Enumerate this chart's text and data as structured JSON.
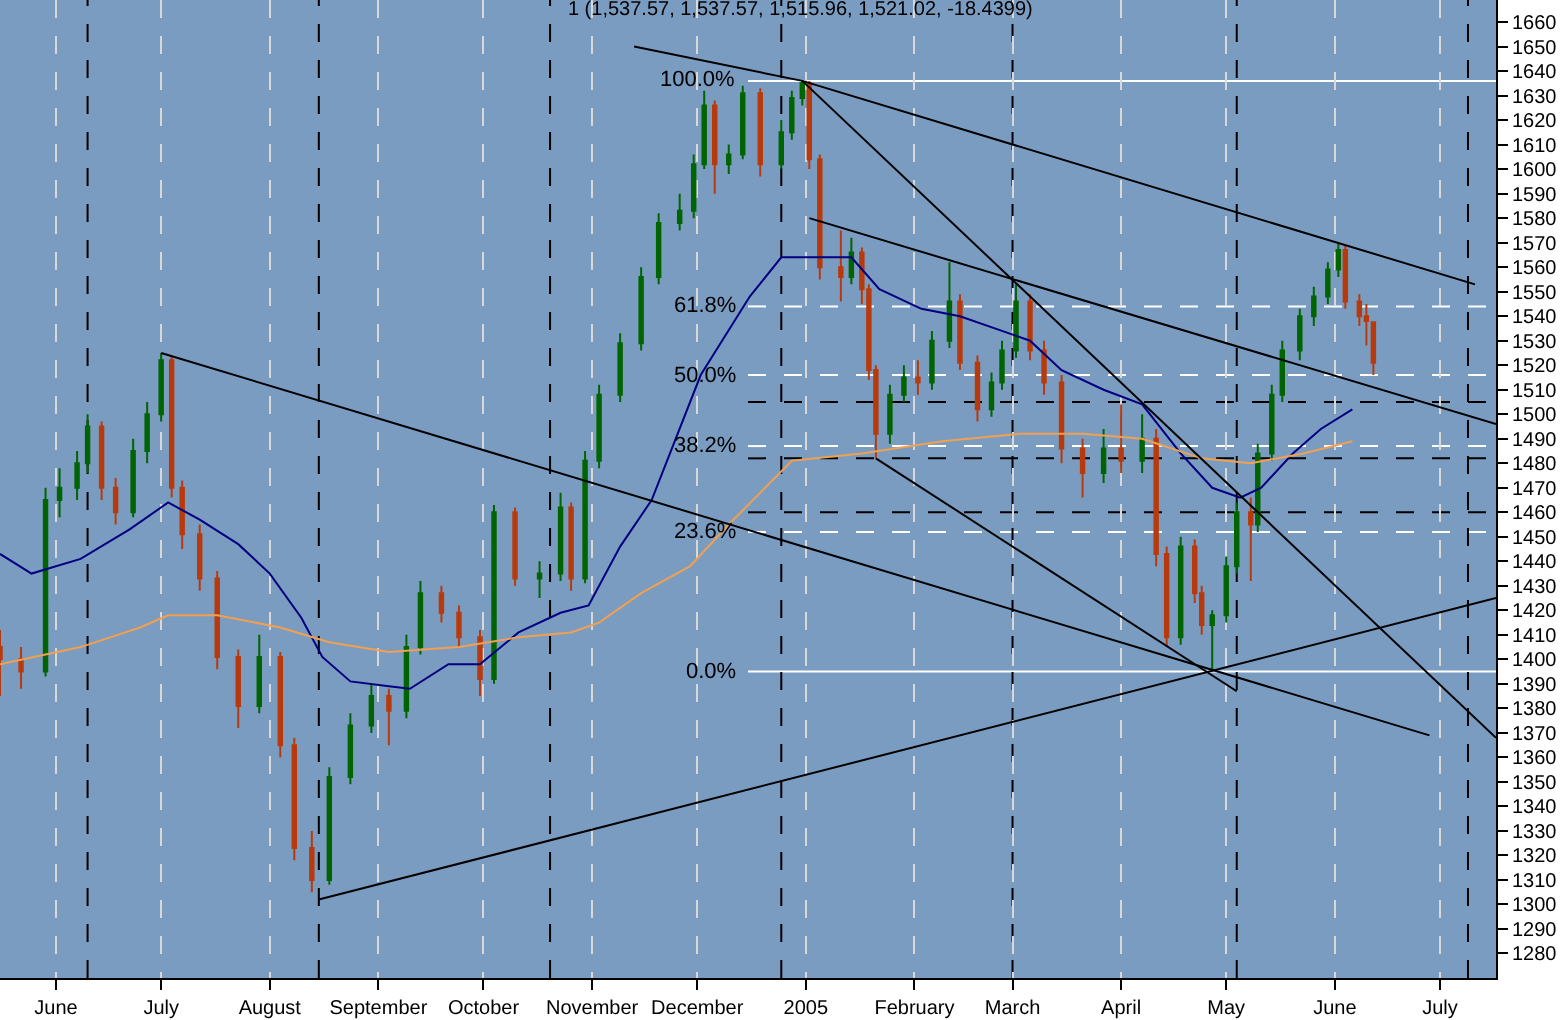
{
  "chart_data": {
    "type": "candlestick",
    "title": "1 (1,537.57, 1,537.57, 1,515.96, 1,521.02, -18.4399)",
    "x": [
      "2004-05-16",
      "2004-05-22",
      "2004-05-29",
      "2004-06-02",
      "2004-06-07",
      "2004-06-10",
      "2004-06-14",
      "2004-06-18",
      "2004-06-23",
      "2004-06-27",
      "2004-07-01",
      "2004-07-04",
      "2004-07-07",
      "2004-07-12",
      "2004-07-17",
      "2004-07-23",
      "2004-07-29",
      "2004-08-04",
      "2004-08-08",
      "2004-08-13",
      "2004-08-18",
      "2004-08-24",
      "2004-08-30",
      "2004-09-04",
      "2004-09-09",
      "2004-09-13",
      "2004-09-19",
      "2004-09-24",
      "2004-09-30",
      "2004-10-04",
      "2004-10-10",
      "2004-10-17",
      "2004-10-23",
      "2004-10-26",
      "2004-10-30",
      "2004-11-03",
      "2004-11-09",
      "2004-11-15",
      "2004-11-20",
      "2004-11-26",
      "2004-11-30",
      "2004-12-03",
      "2004-12-06",
      "2004-12-10",
      "2004-12-14",
      "2004-12-19",
      "2004-12-25",
      "2004-12-28",
      "2004-12-31",
      "2005-01-02",
      "2005-01-05",
      "2005-01-11",
      "2005-01-14",
      "2005-01-17",
      "2005-01-19",
      "2005-01-21",
      "2005-01-25",
      "2005-01-29",
      "2005-02-02",
      "2005-02-06",
      "2005-02-11",
      "2005-02-14",
      "2005-02-19",
      "2005-02-23",
      "2005-02-26",
      "2005-03-02",
      "2005-03-06",
      "2005-03-10",
      "2005-03-15",
      "2005-03-21",
      "2005-03-27",
      "2005-04-01",
      "2005-04-07",
      "2005-04-11",
      "2005-04-14",
      "2005-04-18",
      "2005-04-22",
      "2005-04-24",
      "2005-04-27",
      "2005-05-01",
      "2005-05-04",
      "2005-05-08",
      "2005-05-10",
      "2005-05-14",
      "2005-05-17",
      "2005-05-22",
      "2005-05-26",
      "2005-05-30",
      "2005-06-02",
      "2005-06-04",
      "2005-06-08",
      "2005-06-10",
      "2005-06-12"
    ],
    "ohlc": [
      [
        1405,
        1412,
        1385,
        1400
      ],
      [
        1400,
        1405,
        1388,
        1395
      ],
      [
        1395,
        1470,
        1393,
        1465
      ],
      [
        1465,
        1478,
        1458,
        1470
      ],
      [
        1470,
        1485,
        1465,
        1480
      ],
      [
        1480,
        1500,
        1476,
        1495
      ],
      [
        1495,
        1497,
        1465,
        1470
      ],
      [
        1470,
        1474,
        1455,
        1460
      ],
      [
        1460,
        1490,
        1458,
        1485
      ],
      [
        1485,
        1505,
        1480,
        1500
      ],
      [
        1500,
        1525,
        1497,
        1522
      ],
      [
        1522,
        1524,
        1466,
        1470
      ],
      [
        1470,
        1473,
        1445,
        1451
      ],
      [
        1451,
        1455,
        1428,
        1433
      ],
      [
        1433,
        1436,
        1396,
        1401
      ],
      [
        1401,
        1404,
        1372,
        1381
      ],
      [
        1381,
        1410,
        1378,
        1401
      ],
      [
        1401,
        1403,
        1360,
        1365
      ],
      [
        1365,
        1368,
        1318,
        1323
      ],
      [
        1323,
        1330,
        1305,
        1310
      ],
      [
        1310,
        1356,
        1308,
        1352
      ],
      [
        1352,
        1378,
        1349,
        1373
      ],
      [
        1373,
        1390,
        1370,
        1385
      ],
      [
        1385,
        1388,
        1365,
        1379
      ],
      [
        1379,
        1410,
        1376,
        1405
      ],
      [
        1405,
        1432,
        1402,
        1427
      ],
      [
        1427,
        1430,
        1415,
        1419
      ],
      [
        1419,
        1422,
        1405,
        1409
      ],
      [
        1409,
        1412,
        1385,
        1392
      ],
      [
        1392,
        1463,
        1390,
        1460
      ],
      [
        1460,
        1462,
        1430,
        1433
      ],
      [
        1433,
        1440,
        1425,
        1435
      ],
      [
        1435,
        1468,
        1432,
        1462
      ],
      [
        1462,
        1464,
        1428,
        1433
      ],
      [
        1433,
        1485,
        1431,
        1481
      ],
      [
        1481,
        1512,
        1478,
        1508
      ],
      [
        1508,
        1533,
        1505,
        1529
      ],
      [
        1529,
        1560,
        1526,
        1556
      ],
      [
        1556,
        1582,
        1553,
        1578
      ],
      [
        1578,
        1590,
        1575,
        1583
      ],
      [
        1583,
        1606,
        1580,
        1602
      ],
      [
        1602,
        1632,
        1600,
        1626
      ],
      [
        1626,
        1628,
        1590,
        1602
      ],
      [
        1602,
        1610,
        1598,
        1606
      ],
      [
        1606,
        1634,
        1604,
        1631
      ],
      [
        1631,
        1633,
        1597,
        1602
      ],
      [
        1602,
        1620,
        1600,
        1615
      ],
      [
        1615,
        1632,
        1612,
        1629
      ],
      [
        1629,
        1636,
        1626,
        1635
      ],
      [
        1635,
        1636,
        1600,
        1604
      ],
      [
        1604,
        1606,
        1555,
        1560
      ],
      [
        1560,
        1575,
        1546,
        1556
      ],
      [
        1556,
        1572,
        1553,
        1566
      ],
      [
        1566,
        1568,
        1545,
        1551
      ],
      [
        1551,
        1553,
        1514,
        1518
      ],
      [
        1518,
        1520,
        1482,
        1492
      ],
      [
        1492,
        1512,
        1488,
        1508
      ],
      [
        1508,
        1520,
        1505,
        1515
      ],
      [
        1515,
        1522,
        1508,
        1513
      ],
      [
        1513,
        1534,
        1510,
        1530
      ],
      [
        1530,
        1562,
        1527,
        1546
      ],
      [
        1546,
        1549,
        1518,
        1521
      ],
      [
        1521,
        1524,
        1497,
        1502
      ],
      [
        1502,
        1517,
        1499,
        1513
      ],
      [
        1513,
        1530,
        1510,
        1526
      ],
      [
        1526,
        1553,
        1523,
        1546
      ],
      [
        1546,
        1549,
        1522,
        1526
      ],
      [
        1526,
        1530,
        1508,
        1513
      ],
      [
        1513,
        1516,
        1480,
        1486
      ],
      [
        1486,
        1490,
        1466,
        1476
      ],
      [
        1476,
        1494,
        1472,
        1486
      ],
      [
        1486,
        1504,
        1476,
        1481
      ],
      [
        1481,
        1500,
        1476,
        1490
      ],
      [
        1490,
        1494,
        1438,
        1443
      ],
      [
        1443,
        1446,
        1405,
        1409
      ],
      [
        1409,
        1450,
        1406,
        1446
      ],
      [
        1446,
        1449,
        1423,
        1427
      ],
      [
        1427,
        1430,
        1410,
        1414
      ],
      [
        1414,
        1420,
        1395,
        1418
      ],
      [
        1418,
        1442,
        1415,
        1438
      ],
      [
        1438,
        1464,
        1435,
        1460
      ],
      [
        1460,
        1466,
        1432,
        1455
      ],
      [
        1455,
        1488,
        1452,
        1484
      ],
      [
        1484,
        1512,
        1481,
        1508
      ],
      [
        1508,
        1530,
        1505,
        1526
      ],
      [
        1526,
        1543,
        1522,
        1540
      ],
      [
        1540,
        1552,
        1536,
        1548
      ],
      [
        1548,
        1562,
        1545,
        1559
      ],
      [
        1559,
        1570,
        1556,
        1567
      ],
      [
        1567,
        1569,
        1543,
        1546
      ],
      [
        1546,
        1549,
        1536,
        1540
      ],
      [
        1540,
        1545,
        1528,
        1538
      ],
      [
        1537.57,
        1537.57,
        1515.96,
        1521.02
      ]
    ],
    "colors": [
      "#b83a0c",
      "#b83a0c",
      "#006400",
      "#006400",
      "#006400",
      "#006400",
      "#b83a0c",
      "#b83a0c",
      "#006400",
      "#006400",
      "#006400",
      "#b83a0c",
      "#b83a0c",
      "#b83a0c",
      "#b83a0c",
      "#b83a0c",
      "#006400",
      "#b83a0c",
      "#b83a0c",
      "#b83a0c",
      "#006400",
      "#006400",
      "#006400",
      "#b83a0c",
      "#006400",
      "#006400",
      "#b83a0c",
      "#b83a0c",
      "#b83a0c",
      "#006400",
      "#b83a0c",
      "#006400",
      "#006400",
      "#b83a0c",
      "#006400",
      "#006400",
      "#006400",
      "#006400",
      "#006400",
      "#006400",
      "#006400",
      "#006400",
      "#b83a0c",
      "#006400",
      "#006400",
      "#b83a0c",
      "#006400",
      "#006400",
      "#006400",
      "#b83a0c",
      "#b83a0c",
      "#b83a0c",
      "#006400",
      "#b83a0c",
      "#b83a0c",
      "#b83a0c",
      "#006400",
      "#006400",
      "#b83a0c",
      "#006400",
      "#006400",
      "#b83a0c",
      "#b83a0c",
      "#006400",
      "#006400",
      "#006400",
      "#b83a0c",
      "#b83a0c",
      "#b83a0c",
      "#b83a0c",
      "#006400",
      "#b83a0c",
      "#006400",
      "#b83a0c",
      "#b83a0c",
      "#006400",
      "#b83a0c",
      "#b83a0c",
      "#006400",
      "#006400",
      "#006400",
      "#b83a0c",
      "#006400",
      "#006400",
      "#006400",
      "#006400",
      "#006400",
      "#006400",
      "#006400",
      "#b83a0c",
      "#b83a0c",
      "#b83a0c",
      "#b83a0c"
    ],
    "series": [
      {
        "type": "line",
        "color": "#000080",
        "x": [
          "2004-05-16",
          "2004-05-25",
          "2004-06-08",
          "2004-06-22",
          "2004-07-03",
          "2004-07-12",
          "2004-07-23",
          "2004-08-01",
          "2004-08-10",
          "2004-08-16",
          "2004-08-24",
          "2004-09-04",
          "2004-09-10",
          "2004-09-21",
          "2004-09-30",
          "2004-10-11",
          "2004-10-23",
          "2004-10-31",
          "2004-11-09",
          "2004-11-18",
          "2004-12-02",
          "2004-12-16",
          "2004-12-25",
          "2004-12-31",
          "2005-01-14",
          "2005-01-22",
          "2005-02-03",
          "2005-02-14",
          "2005-02-26",
          "2005-03-06",
          "2005-03-15",
          "2005-03-27",
          "2005-04-07",
          "2005-04-18",
          "2005-04-27",
          "2005-05-05",
          "2005-05-11",
          "2005-05-20",
          "2005-05-28",
          "2005-06-06"
        ],
        "values": [
          1443,
          1435,
          1441,
          1453,
          1464,
          1457,
          1447,
          1435,
          1417,
          1401,
          1391,
          1389,
          1388,
          1398,
          1398,
          1411,
          1419,
          1422,
          1446,
          1465,
          1516,
          1548,
          1564,
          1564,
          1564,
          1551,
          1543,
          1540,
          1534,
          1530,
          1518,
          1510,
          1504,
          1484,
          1470,
          1466,
          1470,
          1484,
          1494,
          1502
        ]
      },
      {
        "type": "line",
        "color": "#f0a050",
        "x": [
          "2004-05-16",
          "2004-06-08",
          "2004-06-25",
          "2004-07-03",
          "2004-07-17",
          "2004-08-04",
          "2004-08-18",
          "2004-09-04",
          "2004-09-24",
          "2004-10-11",
          "2004-10-26",
          "2004-11-03",
          "2004-11-15",
          "2004-11-29",
          "2004-12-10",
          "2004-12-28",
          "2005-01-17",
          "2005-02-09",
          "2005-03-03",
          "2005-03-21",
          "2005-04-07",
          "2005-04-24",
          "2005-05-08",
          "2005-05-23",
          "2005-06-06"
        ],
        "values": [
          1398,
          1405,
          1413,
          1418,
          1418,
          1413,
          1407,
          1403,
          1405,
          1409,
          1411,
          1415,
          1427,
          1438,
          1455,
          1481,
          1484,
          1489,
          1492,
          1492,
          1490,
          1482,
          1480,
          1484,
          1489
        ]
      },
      {
        "type": "line",
        "color": "#000000",
        "x": [
          "2004-11-13",
          "2004-12-31",
          "2005-07-11"
        ],
        "values": [
          1650,
          1636,
          1553
        ]
      },
      {
        "type": "line",
        "color": "#000000",
        "x": [
          "2004-12-31",
          "2005-07-17"
        ],
        "values": [
          1636,
          1368
        ]
      },
      {
        "type": "line",
        "color": "#000000",
        "x": [
          "2005-01-02",
          "2005-07-17"
        ],
        "values": [
          1580,
          1496
        ]
      },
      {
        "type": "line",
        "color": "#000000",
        "x": [
          "2004-07-01",
          "2005-06-28"
        ],
        "values": [
          1525,
          1369
        ]
      },
      {
        "type": "line",
        "color": "#000000",
        "x": [
          "2005-01-21",
          "2005-05-04"
        ],
        "values": [
          1482,
          1387
        ]
      },
      {
        "type": "line",
        "color": "#000000",
        "x": [
          "2004-08-15",
          "2005-07-17"
        ],
        "values": [
          1302,
          1425
        ]
      }
    ],
    "ref_lines": [
      {
        "axis": "y",
        "value": 1636,
        "color": "#ffffff",
        "line_style": "solid"
      },
      {
        "axis": "y",
        "value": 1544,
        "color": "#ffffff",
        "line_style": "dashed"
      },
      {
        "axis": "y",
        "value": 1516,
        "color": "#ffffff",
        "line_style": "dashed"
      },
      {
        "axis": "y",
        "value": 1487,
        "color": "#ffffff",
        "line_style": "dashed"
      },
      {
        "axis": "y",
        "value": 1452,
        "color": "#ffffff",
        "line_style": "dashed"
      },
      {
        "axis": "y",
        "value": 1395,
        "color": "#ffffff",
        "line_style": "solid"
      },
      {
        "axis": "y",
        "value": 1505,
        "color": "#000000",
        "line_style": "dashed"
      },
      {
        "axis": "y",
        "value": 1482,
        "color": "#000000",
        "line_style": "dashed"
      },
      {
        "axis": "y",
        "value": 1460,
        "color": "#000000",
        "line_style": "dashed"
      },
      {
        "axis": "x",
        "value": "2004-06-10",
        "color": "#000000",
        "line_style": "dashed"
      },
      {
        "axis": "x",
        "value": "2004-08-15",
        "color": "#000000",
        "line_style": "dashed"
      },
      {
        "axis": "x",
        "value": "2004-10-20",
        "color": "#000000",
        "line_style": "dashed"
      },
      {
        "axis": "x",
        "value": "2004-12-25",
        "color": "#000000",
        "line_style": "dashed"
      },
      {
        "axis": "x",
        "value": "2005-03-01",
        "color": "#000000",
        "line_style": "dashed"
      },
      {
        "axis": "x",
        "value": "2005-05-04",
        "color": "#000000",
        "line_style": "dashed"
      },
      {
        "axis": "x",
        "value": "2005-07-09",
        "color": "#000000",
        "line_style": "dashed"
      }
    ],
    "xlim": [
      "2004-05-16",
      "2005-07-17"
    ],
    "xticks": [
      {
        "value": "2004-06-01",
        "label": "June"
      },
      {
        "value": "2004-07-01",
        "label": "July"
      },
      {
        "value": "2004-08-01",
        "label": "August"
      },
      {
        "value": "2004-09-01",
        "label": "September"
      },
      {
        "value": "2004-10-01",
        "label": "October"
      },
      {
        "value": "2004-11-01",
        "label": "November"
      },
      {
        "value": "2004-12-01",
        "label": "December"
      },
      {
        "value": "2005-01-01",
        "label": "2005"
      },
      {
        "value": "2005-02-01",
        "label": "February"
      },
      {
        "value": "2005-03-01",
        "label": "March"
      },
      {
        "value": "2005-04-01",
        "label": "April"
      },
      {
        "value": "2005-05-01",
        "label": "May"
      },
      {
        "value": "2005-06-01",
        "label": "June"
      },
      {
        "value": "2005-07-01",
        "label": "July"
      }
    ],
    "ylim": [
      1270,
      1669
    ],
    "yticks": [
      1280,
      1290,
      1300,
      1310,
      1320,
      1330,
      1340,
      1350,
      1360,
      1370,
      1380,
      1390,
      1400,
      1410,
      1420,
      1430,
      1440,
      1450,
      1460,
      1470,
      1480,
      1490,
      1500,
      1510,
      1520,
      1530,
      1540,
      1550,
      1560,
      1570,
      1580,
      1590,
      1600,
      1610,
      1620,
      1630,
      1640,
      1650,
      1660
    ],
    "annotations": [
      {
        "text": "100.0%",
        "x": "2004-12-13",
        "y": 1636
      },
      {
        "text": "61.8%",
        "x": "2004-12-13",
        "y": 1544
      },
      {
        "text": "50.0%",
        "x": "2004-12-13",
        "y": 1516
      },
      {
        "text": "38.2%",
        "x": "2004-12-13",
        "y": 1487
      },
      {
        "text": "23.6%",
        "x": "2004-12-13",
        "y": 1452
      },
      {
        "text": "0.0%",
        "x": "2004-12-13",
        "y": 1395
      }
    ],
    "grid": "x"
  }
}
